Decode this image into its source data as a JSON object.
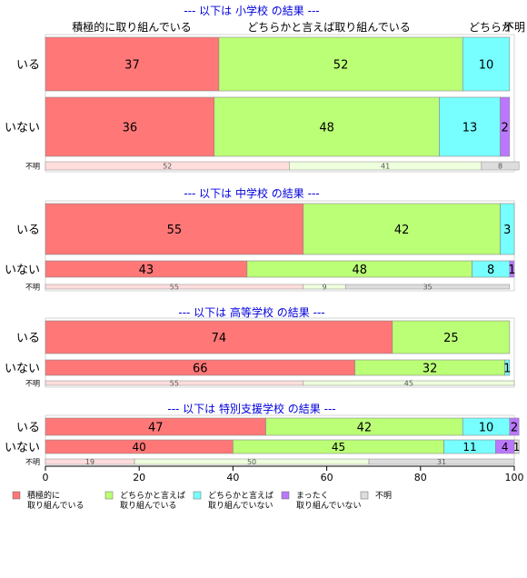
{
  "chart_data": {
    "type": "bar",
    "orientation": "horizontal",
    "stacked": true,
    "xlim": [
      0,
      100
    ],
    "xticks": [
      0,
      20,
      40,
      60,
      80,
      100
    ],
    "top_header_labels": [
      "積極的に取り組んでいる",
      "どちらかと言えば取り組んでいる",
      "どちらか",
      "不明"
    ],
    "series_colors": [
      "#ff7777",
      "#bbff77",
      "#77ffff",
      "#bb77ff",
      "#dddddd"
    ],
    "legend": [
      {
        "line1": "積極的に",
        "line2": "取り組んでいる",
        "color": "#ff7777"
      },
      {
        "line1": "どちらかと言えば",
        "line2": "取り組んでいる",
        "color": "#bbff77"
      },
      {
        "line1": "どちらかと言えば",
        "line2": "取り組んでいない",
        "color": "#77ffff"
      },
      {
        "line1": "まったく",
        "line2": "取り組んでいない",
        "color": "#bb77ff"
      },
      {
        "line1": "不明",
        "line2": "",
        "color": "#dddddd"
      }
    ],
    "groups": [
      {
        "title": "--- 以下は 小学校 の結果 ---",
        "bars": [
          {
            "label": "いる",
            "values": [
              37,
              52,
              10,
              0,
              0
            ]
          },
          {
            "label": "いない",
            "values": [
              36,
              48,
              13,
              2,
              0
            ]
          }
        ],
        "unknown": {
          "label": "不明",
          "values": [
            52,
            41,
            8
          ]
        }
      },
      {
        "title": "--- 以下は 中学校 の結果 ---",
        "bars": [
          {
            "label": "いる",
            "values": [
              55,
              42,
              3,
              0,
              0
            ]
          },
          {
            "label": "いない",
            "values": [
              43,
              48,
              8,
              1,
              0
            ]
          }
        ],
        "unknown": {
          "label": "不明",
          "values": [
            55,
            9,
            35
          ]
        }
      },
      {
        "title": "--- 以下は 高等学校 の結果 ---",
        "bars": [
          {
            "label": "いる",
            "values": [
              74,
              25,
              0,
              0,
              0
            ]
          },
          {
            "label": "いない",
            "values": [
              66,
              32,
              1,
              0,
              0
            ]
          }
        ],
        "unknown": {
          "label": "不明",
          "values": [
            55,
            45,
            0
          ]
        }
      },
      {
        "title": "--- 以下は 特別支援学校 の結果 ---",
        "bars": [
          {
            "label": "いる",
            "values": [
              47,
              42,
              10,
              2,
              0
            ]
          },
          {
            "label": "いない",
            "values": [
              40,
              45,
              11,
              4,
              1
            ]
          }
        ],
        "unknown": {
          "label": "不明",
          "values": [
            19,
            50,
            31
          ]
        }
      }
    ]
  }
}
